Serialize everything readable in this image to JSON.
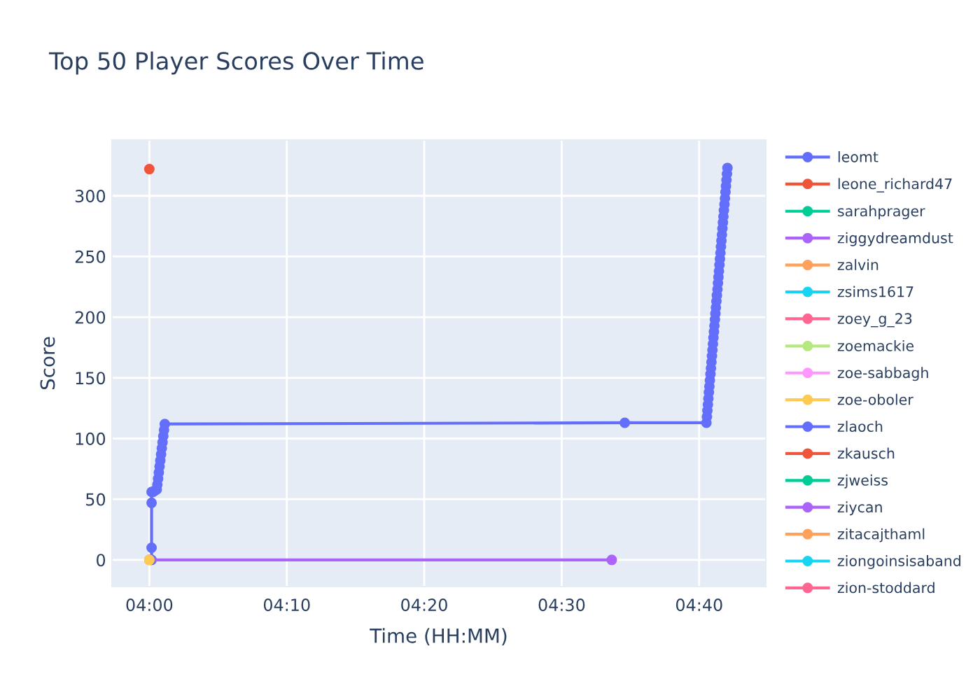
{
  "chart_data": {
    "type": "line",
    "title": "Top 50 Player Scores Over Time",
    "xlabel": "Time (HH:MM)",
    "ylabel": "Score",
    "series": [
      {
        "name": "leomt",
        "color": "#636efa",
        "x": [
          4.0027,
          4.0027,
          4.0027,
          4.0027,
          4.0045,
          4.0065,
          4.009,
          4.0097,
          4.0106,
          4.0115,
          4.0124,
          4.0133,
          4.0142,
          4.0151,
          4.016,
          4.0169,
          4.0178,
          4.0187,
          4.5765,
          4.6755,
          4.6761,
          4.6767,
          4.6773,
          4.6779,
          4.6785,
          4.6791,
          4.6797,
          4.6804,
          4.681,
          4.6816,
          4.6822,
          4.6828,
          4.6834,
          4.684,
          4.6846,
          4.6852,
          4.6858,
          4.6864,
          4.687,
          4.6876,
          4.6882,
          4.6889,
          4.6895,
          4.6901,
          4.6907,
          4.6913,
          4.6919,
          4.6925,
          4.6931,
          4.6937,
          4.6943,
          4.6949,
          4.6955,
          4.6961,
          4.6967,
          4.6974,
          4.698,
          4.6986,
          4.6992,
          4.6998,
          4.7004,
          4.701
        ],
        "values": [
          0,
          10,
          47,
          56,
          56,
          57,
          58,
          62,
          67,
          72,
          77,
          82,
          87,
          92,
          97,
          102,
          107,
          112,
          113,
          113,
          118,
          123,
          128,
          133,
          138,
          143,
          148,
          153,
          158,
          163,
          168,
          173,
          178,
          183,
          188,
          193,
          198,
          203,
          208,
          213,
          218,
          223,
          228,
          233,
          238,
          243,
          248,
          253,
          258,
          263,
          268,
          273,
          278,
          283,
          288,
          293,
          298,
          303,
          308,
          313,
          318,
          323
        ]
      },
      {
        "name": "leone_richard47",
        "color": "#ef553b",
        "x": [
          4.0
        ],
        "values": [
          322
        ]
      },
      {
        "name": "sarahprager",
        "color": "#00cc96"
      },
      {
        "name": "ziggydreamdust",
        "color": "#ab63fa",
        "x": [
          4.0,
          4.5607
        ],
        "values": [
          0,
          0
        ]
      },
      {
        "name": "zalvin",
        "color": "#ffa15a"
      },
      {
        "name": "zsims1617",
        "color": "#19d3f3"
      },
      {
        "name": "zoey_g_23",
        "color": "#ff6692"
      },
      {
        "name": "zoemackie",
        "color": "#b6e880"
      },
      {
        "name": "zoe-sabbagh",
        "color": "#ff97ff"
      },
      {
        "name": "zoe-oboler",
        "color": "#fecb52",
        "x": [
          4.0
        ],
        "values": [
          0
        ]
      },
      {
        "name": "zlaoch",
        "color": "#636efa"
      },
      {
        "name": "zkausch",
        "color": "#ef553b"
      },
      {
        "name": "zjweiss",
        "color": "#00cc96"
      },
      {
        "name": "ziycan",
        "color": "#ab63fa"
      },
      {
        "name": "zitacajthaml",
        "color": "#ffa15a"
      },
      {
        "name": "ziongoinsisaband",
        "color": "#19d3f3"
      },
      {
        "name": "zion-stoddard",
        "color": "#ff6692"
      }
    ],
    "xlim": [
      3.9547,
      4.7475
    ],
    "ylim": [
      -22,
      346
    ],
    "xticks": [
      {
        "value": 4.0,
        "label": "04:00"
      },
      {
        "value": 4.1667,
        "label": "04:10"
      },
      {
        "value": 4.3333,
        "label": "04:20"
      },
      {
        "value": 4.5,
        "label": "04:30"
      },
      {
        "value": 4.6667,
        "label": "04:40"
      }
    ],
    "yticks": [
      0,
      50,
      100,
      150,
      200,
      250,
      300
    ],
    "grid": true,
    "legend": "right",
    "marker": "circle",
    "line_style": "solid"
  }
}
